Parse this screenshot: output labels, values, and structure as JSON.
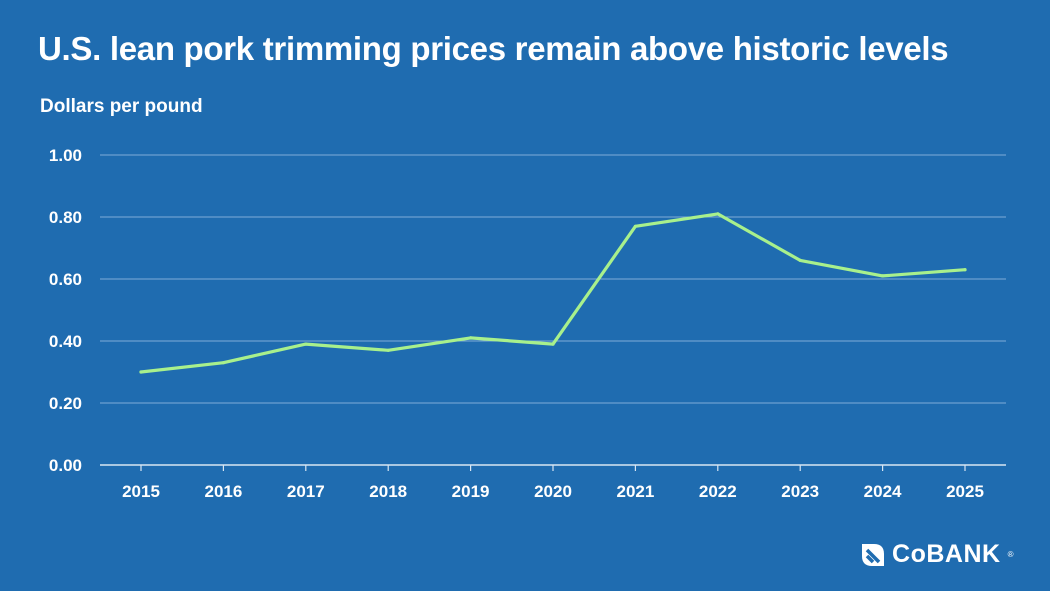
{
  "colors": {
    "background": "#1f6cb0",
    "line": "#a8f08c",
    "grid": "#9fc3e4",
    "text": "#ffffff"
  },
  "brand": {
    "name": "CoBANK",
    "icon": "cobank-logo-icon"
  },
  "chart_data": {
    "type": "line",
    "title": "U.S. lean pork trimming prices remain above historic levels",
    "ylabel": "Dollars per pound",
    "xlabel": "",
    "categories": [
      "2015",
      "2016",
      "2017",
      "2018",
      "2019",
      "2020",
      "2021",
      "2022",
      "2023",
      "2024",
      "2025"
    ],
    "series": [
      {
        "values": [
          0.3,
          0.33,
          0.39,
          0.37,
          0.41,
          0.39,
          0.77,
          0.81,
          0.66,
          0.61,
          0.63
        ]
      }
    ],
    "ylim": [
      0,
      1.0
    ],
    "yticks": [
      "0.00",
      "0.20",
      "0.40",
      "0.60",
      "0.80",
      "1.00"
    ],
    "grid": true,
    "legend": "none"
  }
}
